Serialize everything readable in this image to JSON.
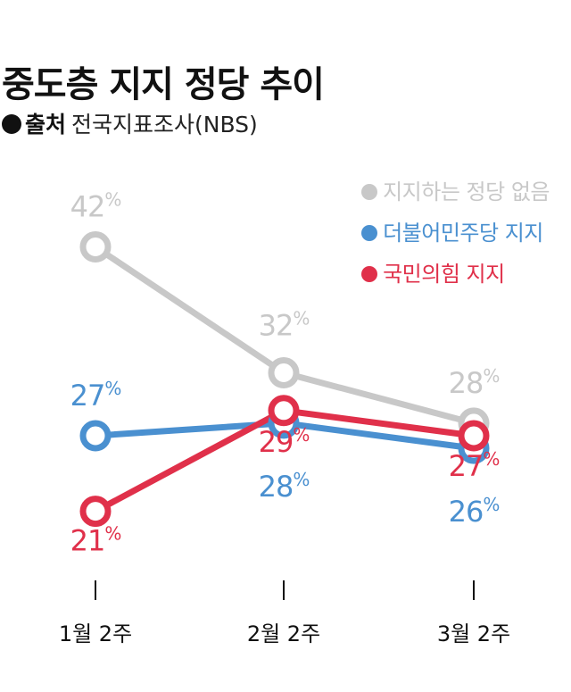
{
  "title": "중도층 지지 정당 추이",
  "source": {
    "label": "출처",
    "text": "전국지표조사(NBS)"
  },
  "chart_data": {
    "type": "line",
    "categories": [
      "1월 2주",
      "2월 2주",
      "3월 2주"
    ],
    "unit": "%",
    "series": [
      {
        "name": "지지하는 정당 없음",
        "color": "#c8c8c8",
        "values": [
          42,
          32,
          28
        ]
      },
      {
        "name": "더불어민주당 지지",
        "color": "#4a90d0",
        "values": [
          27,
          28,
          26
        ]
      },
      {
        "name": "국민의힘 지지",
        "color": "#e0304a",
        "values": [
          21,
          29,
          27
        ]
      }
    ]
  }
}
